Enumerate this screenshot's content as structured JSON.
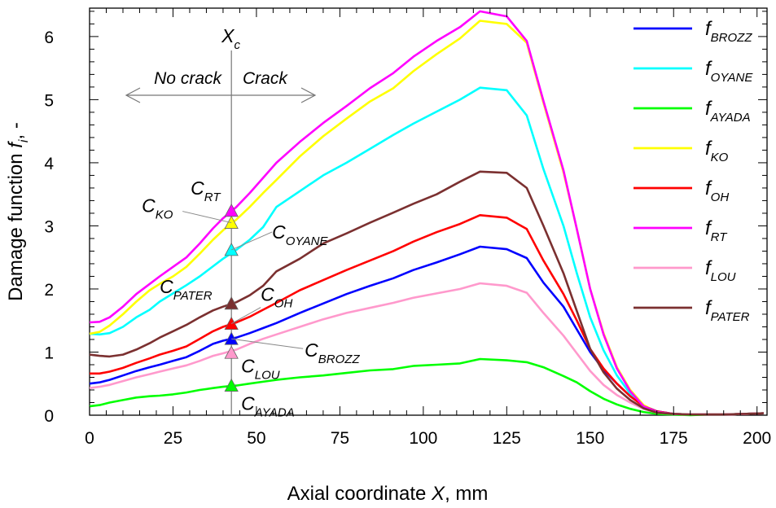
{
  "chart_data": {
    "type": "line",
    "xlabel_prefix": "Axial coordinate ",
    "xlabel_var": "X",
    "xlabel_suffix": ", mm",
    "ylabel_prefix": "Damage function ",
    "ylabel_var": "f",
    "ylabel_sub": "i",
    "ylabel_suffix": ", -",
    "xlim": [
      0,
      203
    ],
    "ylim": [
      0,
      6.45
    ],
    "xticks": [
      0,
      25,
      50,
      75,
      100,
      125,
      150,
      175,
      200
    ],
    "yticks": [
      0,
      1,
      2,
      3,
      4,
      5,
      6
    ],
    "x": [
      0,
      3,
      6,
      10,
      14,
      18,
      21,
      25,
      29,
      33,
      37,
      40,
      44,
      48,
      52,
      56,
      63,
      70,
      77,
      84,
      91,
      97,
      104,
      111,
      117,
      125,
      131,
      136,
      142,
      146,
      150,
      154,
      158,
      162,
      166,
      170,
      175,
      180,
      185,
      190,
      196,
      202
    ],
    "series": [
      {
        "name": "BROZZ",
        "color": "#0000ff",
        "values": [
          0.5,
          0.52,
          0.56,
          0.63,
          0.7,
          0.76,
          0.8,
          0.86,
          0.92,
          1.02,
          1.13,
          1.18,
          1.23,
          1.3,
          1.38,
          1.46,
          1.62,
          1.77,
          1.92,
          2.05,
          2.17,
          2.3,
          2.42,
          2.55,
          2.67,
          2.63,
          2.49,
          2.1,
          1.72,
          1.36,
          1.0,
          0.72,
          0.5,
          0.3,
          0.15,
          0.06,
          0.02,
          0.01,
          0.01,
          0.01,
          0.02,
          0.03
        ]
      },
      {
        "name": "OYANE",
        "color": "#00ffff",
        "values": [
          1.29,
          1.28,
          1.3,
          1.4,
          1.55,
          1.67,
          1.8,
          1.93,
          2.06,
          2.2,
          2.36,
          2.48,
          2.62,
          2.78,
          2.98,
          3.3,
          3.55,
          3.8,
          4.0,
          4.22,
          4.44,
          4.62,
          4.81,
          5.0,
          5.19,
          5.15,
          4.75,
          3.9,
          3.0,
          2.25,
          1.55,
          1.03,
          0.63,
          0.34,
          0.14,
          0.05,
          0.02,
          0.01,
          0.01,
          0.01,
          0.02,
          0.03
        ]
      },
      {
        "name": "AYADA",
        "color": "#00ff00",
        "values": [
          0.14,
          0.16,
          0.2,
          0.24,
          0.28,
          0.3,
          0.31,
          0.33,
          0.36,
          0.4,
          0.43,
          0.45,
          0.47,
          0.5,
          0.53,
          0.56,
          0.6,
          0.63,
          0.67,
          0.71,
          0.73,
          0.78,
          0.8,
          0.82,
          0.89,
          0.87,
          0.84,
          0.76,
          0.62,
          0.52,
          0.38,
          0.26,
          0.17,
          0.1,
          0.05,
          0.02,
          0.01,
          0.0,
          0.01,
          0.01,
          0.02,
          0.03
        ]
      },
      {
        "name": "KO",
        "color": "#ffff00",
        "values": [
          1.29,
          1.32,
          1.42,
          1.6,
          1.8,
          1.98,
          2.08,
          2.2,
          2.35,
          2.56,
          2.78,
          2.93,
          3.1,
          3.3,
          3.52,
          3.73,
          4.1,
          4.42,
          4.7,
          4.97,
          5.18,
          5.45,
          5.72,
          5.97,
          6.25,
          6.2,
          5.9,
          4.95,
          3.85,
          2.95,
          2.0,
          1.3,
          0.76,
          0.4,
          0.16,
          0.05,
          0.02,
          0.01,
          0.01,
          0.01,
          0.02,
          0.03
        ]
      },
      {
        "name": "OH",
        "color": "#ff0000",
        "values": [
          0.66,
          0.66,
          0.69,
          0.75,
          0.83,
          0.9,
          0.96,
          1.02,
          1.09,
          1.21,
          1.33,
          1.4,
          1.47,
          1.56,
          1.67,
          1.78,
          1.98,
          2.14,
          2.3,
          2.45,
          2.6,
          2.75,
          2.9,
          3.03,
          3.17,
          3.13,
          2.95,
          2.45,
          1.92,
          1.5,
          1.05,
          0.74,
          0.5,
          0.3,
          0.14,
          0.06,
          0.02,
          0.01,
          0.01,
          0.01,
          0.02,
          0.03
        ]
      },
      {
        "name": "RT",
        "color": "#ff00ff",
        "values": [
          1.47,
          1.48,
          1.55,
          1.72,
          1.92,
          2.08,
          2.2,
          2.35,
          2.5,
          2.72,
          2.96,
          3.12,
          3.3,
          3.52,
          3.76,
          4.0,
          4.33,
          4.63,
          4.9,
          5.18,
          5.42,
          5.68,
          5.93,
          6.15,
          6.4,
          6.32,
          5.93,
          4.98,
          3.88,
          2.95,
          2.0,
          1.28,
          0.74,
          0.38,
          0.14,
          0.05,
          0.02,
          0.01,
          0.01,
          0.01,
          0.02,
          0.03
        ]
      },
      {
        "name": "LOU",
        "color": "#ff99cc",
        "values": [
          0.43,
          0.45,
          0.48,
          0.54,
          0.6,
          0.65,
          0.69,
          0.74,
          0.79,
          0.86,
          0.94,
          0.98,
          1.04,
          1.13,
          1.21,
          1.28,
          1.4,
          1.52,
          1.62,
          1.7,
          1.78,
          1.86,
          1.93,
          2.0,
          2.09,
          2.05,
          1.94,
          1.62,
          1.26,
          0.98,
          0.7,
          0.48,
          0.32,
          0.2,
          0.1,
          0.04,
          0.02,
          0.01,
          0.01,
          0.01,
          0.02,
          0.03
        ]
      },
      {
        "name": "PATER",
        "color": "#7b3030",
        "values": [
          0.96,
          0.94,
          0.93,
          0.96,
          1.04,
          1.14,
          1.23,
          1.33,
          1.43,
          1.55,
          1.66,
          1.72,
          1.79,
          1.9,
          2.05,
          2.28,
          2.48,
          2.72,
          2.88,
          3.05,
          3.21,
          3.35,
          3.5,
          3.7,
          3.86,
          3.84,
          3.6,
          3.0,
          2.25,
          1.65,
          1.05,
          0.68,
          0.42,
          0.24,
          0.11,
          0.04,
          0.02,
          0.01,
          0.01,
          0.01,
          0.02,
          0.03
        ]
      }
    ],
    "legend_position": "top-right",
    "crack_line_x": 42.5,
    "crack_line_label_main": "X",
    "crack_line_label_sub": "c",
    "zone_left_label": "No crack",
    "zone_right_label": "Crack",
    "critical_markers": [
      {
        "name": "RT",
        "y": 3.24,
        "color": "#ff00ff"
      },
      {
        "name": "KO",
        "y": 3.05,
        "color": "#ffff00"
      },
      {
        "name": "OYANE",
        "y": 2.62,
        "color": "#00ffff"
      },
      {
        "name": "PATER",
        "y": 1.77,
        "color": "#7b3030"
      },
      {
        "name": "OH",
        "y": 1.45,
        "color": "#ff0000"
      },
      {
        "name": "BROZZ",
        "y": 1.21,
        "color": "#0000ff"
      },
      {
        "name": "LOU",
        "y": 0.99,
        "color": "#ff99cc"
      },
      {
        "name": "AYADA",
        "y": 0.47,
        "color": "#00ff00"
      }
    ]
  }
}
